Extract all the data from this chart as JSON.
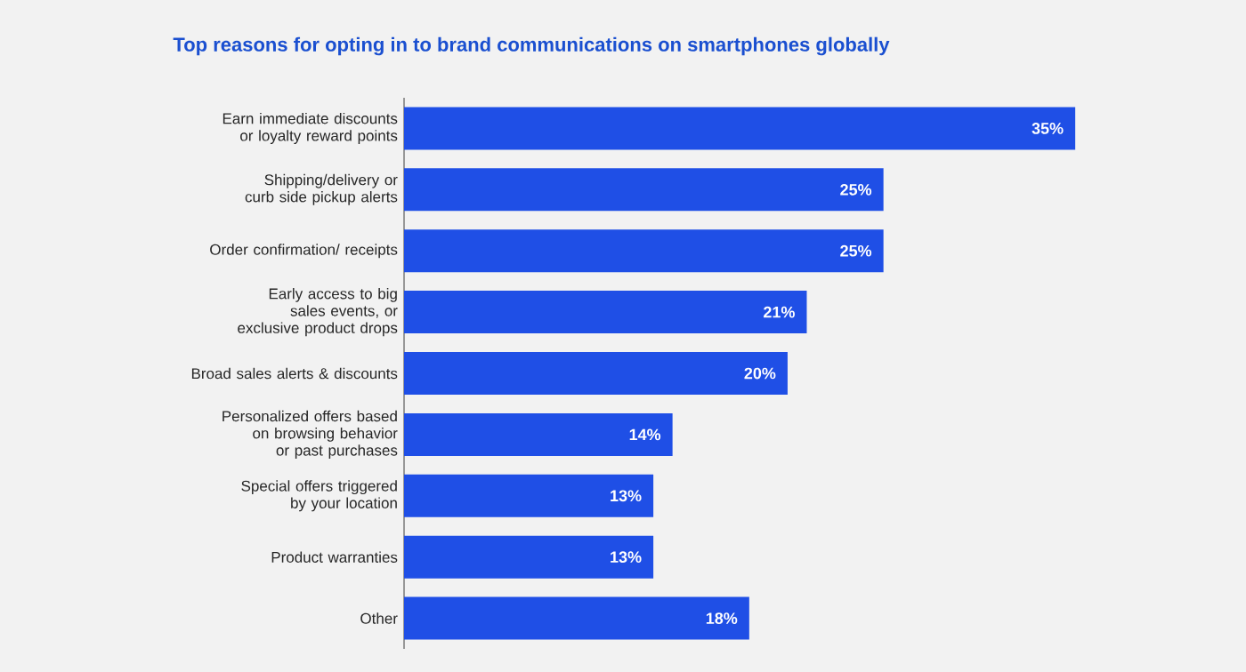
{
  "chart_data": {
    "type": "bar",
    "orientation": "horizontal",
    "title": "Top reasons for opting in to brand communications on smartphones globally",
    "categories": [
      "Earn immediate discounts or loyalty reward points",
      "Shipping/delivery or curb side pickup alerts",
      "Order confirmation/ receipts",
      "Early access to big sales events, or exclusive product drops",
      "Broad sales alerts & discounts",
      "Personalized offers based on browsing behavior or past purchases",
      "Special offers triggered by your location",
      "Product warranties",
      "Other"
    ],
    "values": [
      35,
      25,
      25,
      21,
      20,
      14,
      13,
      13,
      18
    ],
    "value_labels": [
      "35%",
      "25%",
      "25%",
      "21%",
      "20%",
      "14%",
      "13%",
      "13%",
      "18%"
    ],
    "color": "#1f4fe6"
  }
}
